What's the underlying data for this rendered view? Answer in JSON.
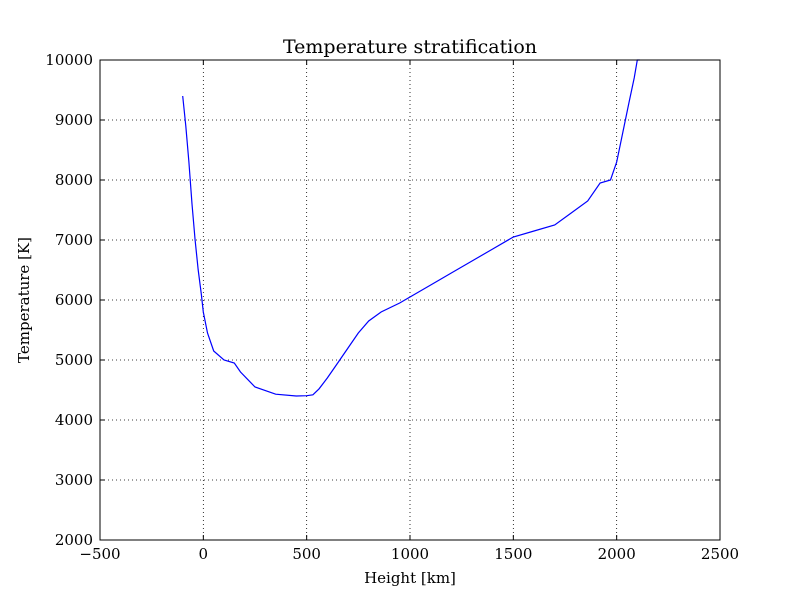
{
  "chart_data": {
    "type": "line",
    "title": "Temperature stratification",
    "xlabel": "Height [km]",
    "ylabel": "Temperature [K]",
    "xlim": [
      -500,
      2500
    ],
    "ylim": [
      2000,
      10000
    ],
    "xticks": [
      -500,
      0,
      500,
      1000,
      1500,
      2000,
      2500
    ],
    "yticks": [
      2000,
      3000,
      4000,
      5000,
      6000,
      7000,
      8000,
      9000,
      10000
    ],
    "xtick_labels": [
      "−500",
      "0",
      "500",
      "1000",
      "1500",
      "2000",
      "2500"
    ],
    "ytick_labels": [
      "2000",
      "3000",
      "4000",
      "5000",
      "6000",
      "7000",
      "8000",
      "9000",
      "10000"
    ],
    "grid": true,
    "series": [
      {
        "color": "#0000ff",
        "x": [
          -100,
          -85,
          -70,
          -55,
          -40,
          -25,
          -10,
          0,
          20,
          50,
          100,
          150,
          180,
          250,
          350,
          450,
          500,
          530,
          560,
          600,
          650,
          700,
          750,
          800,
          860,
          950,
          1000,
          1100,
          1200,
          1300,
          1400,
          1500,
          1600,
          1700,
          1780,
          1860,
          1920,
          1970,
          2000,
          2030,
          2060,
          2085,
          2100,
          2112
        ],
        "y": [
          9400,
          8900,
          8300,
          7600,
          7000,
          6500,
          6100,
          5800,
          5450,
          5150,
          5000,
          4950,
          4800,
          4550,
          4430,
          4400,
          4405,
          4420,
          4520,
          4700,
          4950,
          5200,
          5450,
          5650,
          5800,
          5950,
          6050,
          6250,
          6450,
          6650,
          6850,
          7050,
          7150,
          7250,
          7450,
          7650,
          7950,
          8000,
          8300,
          8800,
          9300,
          9700,
          10000,
          10000
        ]
      }
    ]
  }
}
